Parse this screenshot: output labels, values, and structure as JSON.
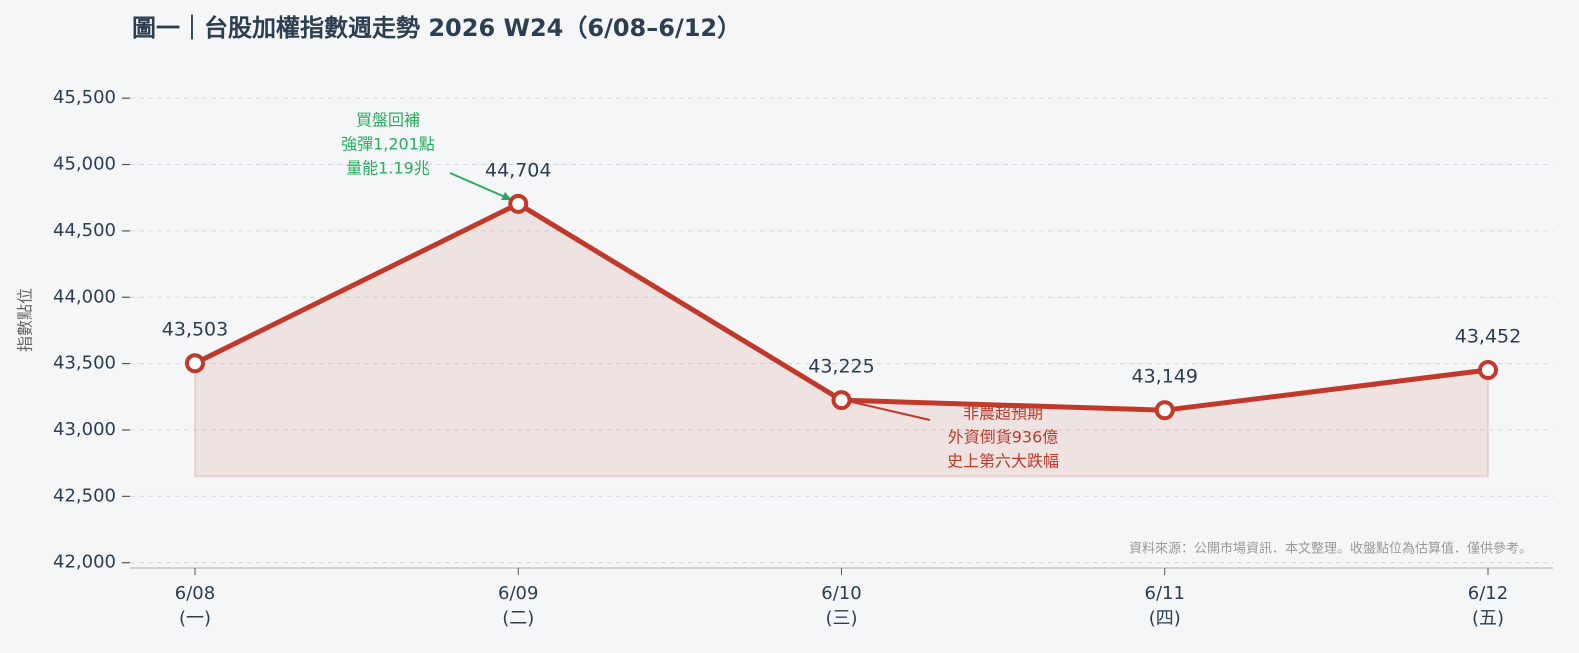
{
  "chart_data": {
    "type": "line",
    "title": "圖一｜台股加權指數週走勢  2026 W24（6/08–6/12）",
    "y_label": "指數點位",
    "source_note": "資料來源：公開市場資訊．本文整理。收盤點位為估算值．僅供參考。",
    "categories": [
      [
        "6/08",
        "(一)"
      ],
      [
        "6/09",
        "(二)"
      ],
      [
        "6/10",
        "(三)"
      ],
      [
        "6/11",
        "(四)"
      ],
      [
        "6/12",
        "(五)"
      ]
    ],
    "series": [
      {
        "name": "加權指數",
        "color": "#c0392b",
        "values": [
          43503,
          44704,
          43225,
          43149,
          43452
        ],
        "value_labels": [
          "43,503",
          "44,704",
          "43,225",
          "43,149",
          "43,452"
        ]
      }
    ],
    "area_baseline": 42650,
    "ylim": [
      41960,
      45750
    ],
    "yticks": [
      {
        "value": 42000,
        "label": "42,000"
      },
      {
        "value": 42500,
        "label": "42,500"
      },
      {
        "value": 43000,
        "label": "43,000"
      },
      {
        "value": 43500,
        "label": "43,500"
      },
      {
        "value": 44000,
        "label": "44,000"
      },
      {
        "value": 44500,
        "label": "44,500"
      },
      {
        "value": 45000,
        "label": "45,000"
      },
      {
        "value": 45500,
        "label": "45,500"
      }
    ],
    "grid": true,
    "annotations": [
      {
        "lines": [
          "買盤回補",
          "強彈1,201點",
          "量能1.19兆"
        ],
        "color": "#27ae60"
      },
      {
        "lines": [
          "非農超預期",
          "外資倒貨936億",
          "史上第六大跌幅"
        ],
        "color": "#c0392b"
      }
    ]
  }
}
